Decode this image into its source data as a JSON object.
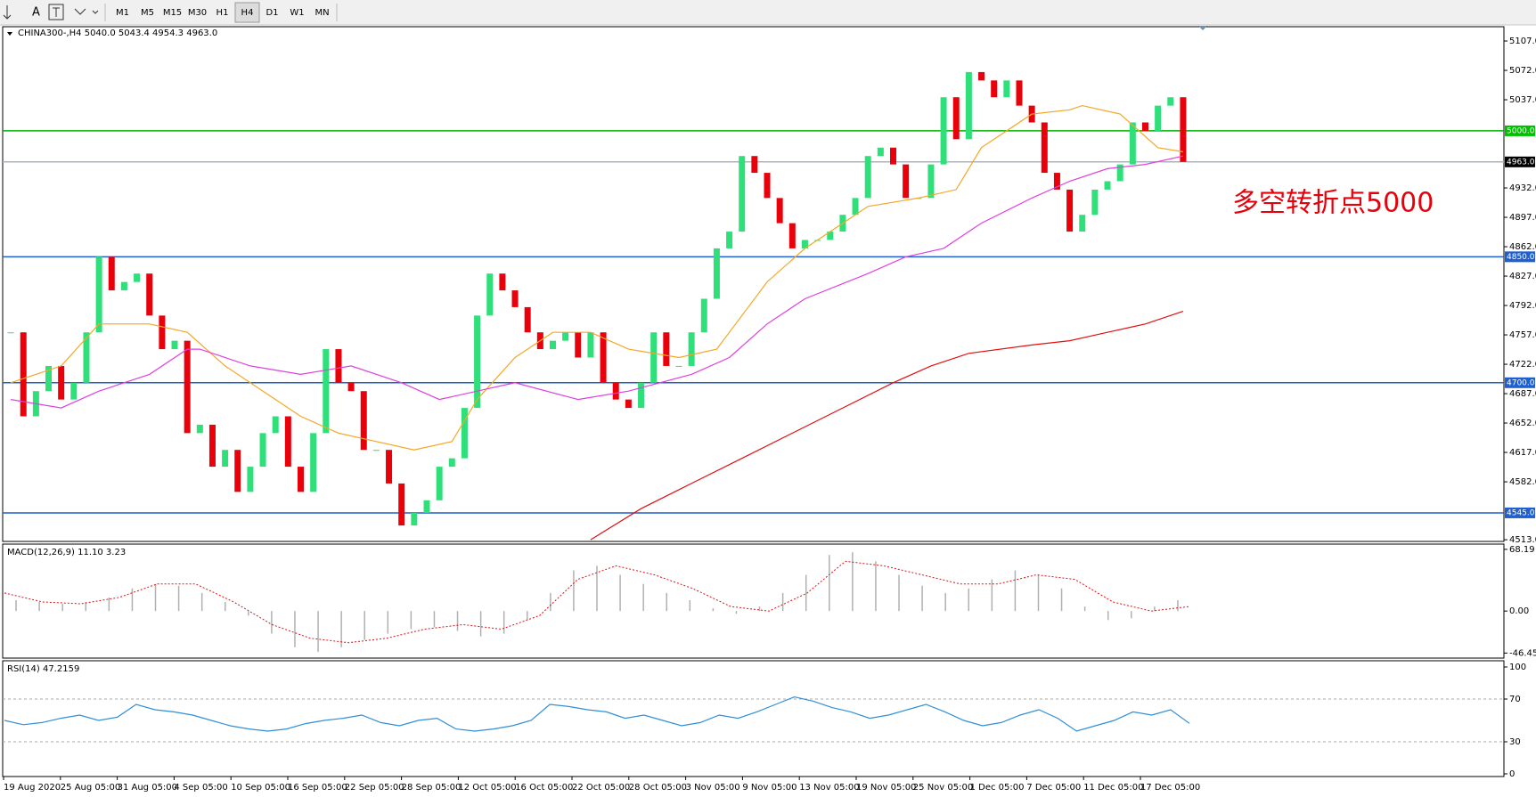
{
  "toolbar": {
    "timeframes": [
      "M1",
      "M5",
      "M15",
      "M30",
      "H1",
      "H4",
      "D1",
      "W1",
      "MN"
    ],
    "active_index": 5,
    "text_tool": "A"
  },
  "chart_data": {
    "type": "candlestick",
    "header": "CHINA300-,H4  5040.0 5043.4 4954.3 4963.0",
    "annotation": "多空转折点5000",
    "up_color": "#2fe07a",
    "down_color": "#e8000b",
    "ylim": [
      4511,
      5124
    ],
    "yticks": [
      {
        "value": 5107,
        "label": "5107.0"
      },
      {
        "value": 5072,
        "label": "5072.0"
      },
      {
        "value": 5037,
        "label": "5037.0"
      },
      {
        "value": 4932,
        "label": "4932.0"
      },
      {
        "value": 4897,
        "label": "4897.0"
      },
      {
        "value": 4862,
        "label": "4862.0"
      },
      {
        "value": 4827,
        "label": "4827.0"
      },
      {
        "value": 4792,
        "label": "4792.0"
      },
      {
        "value": 4757,
        "label": "4757.0"
      },
      {
        "value": 4722,
        "label": "4722.0"
      },
      {
        "value": 4687,
        "label": "4687.0"
      },
      {
        "value": 4652,
        "label": "4652.0"
      },
      {
        "value": 4617,
        "label": "4617.0"
      },
      {
        "value": 4582,
        "label": "4582.0"
      },
      {
        "value": 4513,
        "label": "4513.0"
      }
    ],
    "levels": [
      {
        "value": 5000,
        "label": "5000.0",
        "color": "#00b000",
        "box": "#00c000",
        "text": "#ffffff"
      },
      {
        "value": 4963,
        "label": "4963.0",
        "color": "#a8b4c0",
        "box": "#000000",
        "text": "#ffffff"
      },
      {
        "value": 4850,
        "label": "4850.0",
        "color": "#1f5fd0",
        "box": "#1f5fd0",
        "text": "#ffffff"
      },
      {
        "value": 4700,
        "label": "4700.0",
        "color": "#1f5fd0",
        "box": "#1f5fd0",
        "text": "#ffffff"
      },
      {
        "value": 4545,
        "label": "4545.0",
        "color": "#1f5fd0",
        "box": "#1f5fd0",
        "text": "#ffffff"
      }
    ],
    "closes": [
      4760,
      4660,
      4690,
      4720,
      4680,
      4700,
      4760,
      4850,
      4810,
      4820,
      4830,
      4780,
      4740,
      4750,
      4640,
      4650,
      4600,
      4620,
      4570,
      4600,
      4640,
      4660,
      4600,
      4570,
      4640,
      4740,
      4700,
      4690,
      4620,
      4620,
      4580,
      4530,
      4545,
      4560,
      4600,
      4610,
      4670,
      4780,
      4830,
      4810,
      4790,
      4760,
      4740,
      4750,
      4760,
      4730,
      4760,
      4700,
      4680,
      4670,
      4700,
      4760,
      4720,
      4720,
      4760,
      4800,
      4860,
      4880,
      4970,
      4950,
      4920,
      4890,
      4860,
      4870,
      4870,
      4880,
      4900,
      4920,
      4970,
      4980,
      4960,
      4920,
      4920,
      4960,
      5040,
      4990,
      5070,
      5060,
      5040,
      5060,
      5030,
      5010,
      4950,
      4930,
      4880,
      4900,
      4930,
      4940,
      4960,
      5010,
      5000,
      5030,
      5040,
      4963
    ],
    "series": [
      {
        "color": "#f5a623",
        "x": [
          0,
          4,
          7,
          11,
          14,
          17,
          20,
          23,
          26,
          29,
          32,
          35,
          37,
          40,
          43,
          46,
          49,
          53,
          56,
          57,
          60,
          63,
          65,
          68,
          72,
          75,
          77,
          81,
          84,
          85,
          88,
          91,
          93
        ],
        "values": [
          4700,
          4720,
          4770,
          4770,
          4760,
          4720,
          4690,
          4660,
          4640,
          4630,
          4620,
          4630,
          4680,
          4730,
          4760,
          4760,
          4740,
          4730,
          4740,
          4760,
          4820,
          4860,
          4880,
          4910,
          4920,
          4930,
          4980,
          5020,
          5025,
          5030,
          5020,
          4980,
          4975
        ]
      },
      {
        "color": "#e040e0",
        "x": [
          0,
          4,
          7,
          11,
          14,
          15,
          19,
          23,
          27,
          31,
          34,
          37,
          40,
          45,
          49,
          54,
          57,
          60,
          63,
          68,
          71,
          74,
          77,
          81,
          84,
          87,
          90,
          93
        ],
        "values": [
          4680,
          4670,
          4690,
          4710,
          4740,
          4740,
          4720,
          4710,
          4720,
          4700,
          4680,
          4690,
          4700,
          4680,
          4690,
          4710,
          4730,
          4770,
          4800,
          4830,
          4850,
          4860,
          4890,
          4920,
          4940,
          4955,
          4960,
          4970
        ]
      },
      {
        "color": "#e01010",
        "x": [
          46,
          50,
          54,
          58,
          62,
          66,
          70,
          73,
          76,
          81,
          84,
          87,
          90,
          93
        ],
        "values": [
          4513,
          4550,
          4580,
          4610,
          4640,
          4670,
          4700,
          4720,
          4735,
          4745,
          4750,
          4760,
          4770,
          4785
        ]
      }
    ],
    "x_labels": [
      "19 Aug 2020",
      "25 Aug 05:00",
      "31 Aug 05:00",
      "4 Sep 05:00",
      "10 Sep 05:00",
      "16 Sep 05:00",
      "22 Sep 05:00",
      "28 Sep 05:00",
      "12 Oct 05:00",
      "16 Oct 05:00",
      "22 Oct 05:00",
      "28 Oct 05:00",
      "3 Nov 05:00",
      "9 Nov 05:00",
      "13 Nov 05:00",
      "19 Nov 05:00",
      "25 Nov 05:00",
      "1 Dec 05:00",
      "7 Dec 05:00",
      "11 Dec 05:00",
      "17 Dec 05:00"
    ]
  },
  "macd": {
    "label": "MACD(12,26,9) 11.10 3.23",
    "ylim": [
      -52,
      74
    ],
    "yticks": [
      68.19,
      {
        "value": 0,
        "label": "0.00"
      },
      -46.45
    ],
    "hist_color": "#b0b0b0",
    "signal_color": "#e01010",
    "histogram": [
      12,
      10,
      8,
      10,
      15,
      25,
      30,
      28,
      20,
      10,
      -5,
      -25,
      -40,
      -45,
      -40,
      -32,
      -25,
      -20,
      -18,
      -22,
      -28,
      -25,
      -10,
      20,
      45,
      50,
      40,
      30,
      20,
      12,
      3,
      -3,
      5,
      20,
      40,
      62,
      65,
      55,
      40,
      28,
      20,
      25,
      35,
      45,
      40,
      25,
      5,
      -10,
      -8,
      5,
      12
    ],
    "signal": [
      20,
      10,
      8,
      15,
      30,
      30,
      10,
      -15,
      -30,
      -35,
      -30,
      -20,
      -15,
      -20,
      -5,
      35,
      50,
      40,
      25,
      5,
      0,
      20,
      55,
      50,
      40,
      30,
      30,
      40,
      35,
      10,
      0,
      5
    ]
  },
  "rsi": {
    "label": "RSI(14) 47.2159",
    "ylim": [
      0,
      100
    ],
    "yticks": [
      100,
      70,
      30,
      0
    ],
    "color": "#2f8fd8",
    "values": [
      50,
      46,
      48,
      52,
      55,
      50,
      53,
      65,
      60,
      58,
      55,
      50,
      45,
      42,
      40,
      42,
      47,
      50,
      52,
      55,
      48,
      45,
      50,
      52,
      42,
      40,
      42,
      45,
      50,
      65,
      63,
      60,
      58,
      52,
      55,
      50,
      45,
      48,
      55,
      52,
      58,
      65,
      72,
      68,
      62,
      58,
      52,
      55,
      60,
      65,
      58,
      50,
      45,
      48,
      55,
      60,
      52,
      40,
      45,
      50,
      58,
      55,
      60,
      47.2159
    ]
  }
}
